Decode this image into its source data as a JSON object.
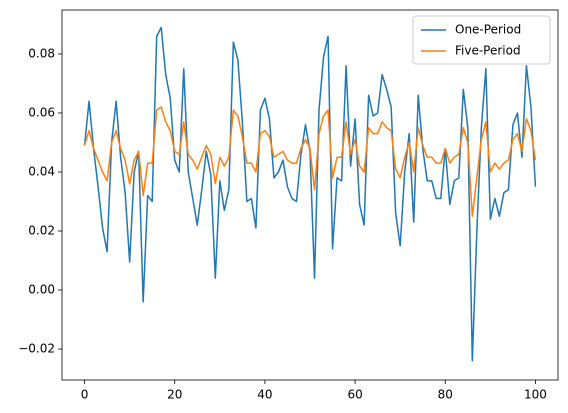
{
  "chart_data": {
    "type": "line",
    "x": [
      0,
      1,
      2,
      3,
      4,
      5,
      6,
      7,
      8,
      9,
      10,
      11,
      12,
      13,
      14,
      15,
      16,
      17,
      18,
      19,
      20,
      21,
      22,
      23,
      24,
      25,
      26,
      27,
      28,
      29,
      30,
      31,
      32,
      33,
      34,
      35,
      36,
      37,
      38,
      39,
      40,
      41,
      42,
      43,
      44,
      45,
      46,
      47,
      48,
      49,
      50,
      51,
      52,
      53,
      54,
      55,
      56,
      57,
      58,
      59,
      60,
      61,
      62,
      63,
      64,
      65,
      66,
      67,
      68,
      69,
      70,
      71,
      72,
      73,
      74,
      75,
      76,
      77,
      78,
      79,
      80,
      81,
      82,
      83,
      84,
      85,
      86,
      87,
      88,
      89,
      90,
      91,
      92,
      93,
      94,
      95,
      96,
      97,
      98,
      99,
      100
    ],
    "series": [
      {
        "name": "One-Period",
        "color": "#1f77b4",
        "values": [
          0.049,
          0.064,
          0.048,
          0.035,
          0.021,
          0.013,
          0.05,
          0.064,
          0.045,
          0.033,
          0.0095,
          0.04,
          0.047,
          -0.004,
          0.032,
          0.03,
          0.086,
          0.089,
          0.073,
          0.065,
          0.044,
          0.04,
          0.075,
          0.04,
          0.031,
          0.022,
          0.034,
          0.047,
          0.039,
          0.004,
          0.037,
          0.027,
          0.034,
          0.084,
          0.078,
          0.057,
          0.03,
          0.031,
          0.021,
          0.061,
          0.065,
          0.058,
          0.038,
          0.04,
          0.044,
          0.035,
          0.031,
          0.03,
          0.046,
          0.056,
          0.047,
          0.004,
          0.061,
          0.079,
          0.086,
          0.014,
          0.038,
          0.037,
          0.076,
          0.042,
          0.058,
          0.029,
          0.022,
          0.066,
          0.059,
          0.06,
          0.073,
          0.068,
          0.062,
          0.026,
          0.015,
          0.04,
          0.053,
          0.023,
          0.066,
          0.048,
          0.037,
          0.037,
          0.031,
          0.031,
          0.048,
          0.029,
          0.037,
          0.038,
          0.068,
          0.055,
          -0.024,
          0.02,
          0.055,
          0.075,
          0.024,
          0.031,
          0.025,
          0.033,
          0.034,
          0.056,
          0.06,
          0.045,
          0.076,
          0.062,
          0.035
        ]
      },
      {
        "name": "Five-Period",
        "color": "#ff7f0e",
        "values": [
          0.049,
          0.054,
          0.048,
          0.044,
          0.04,
          0.037,
          0.05,
          0.054,
          0.048,
          0.044,
          0.036,
          0.044,
          0.047,
          0.032,
          0.043,
          0.043,
          0.061,
          0.062,
          0.057,
          0.054,
          0.047,
          0.046,
          0.057,
          0.046,
          0.044,
          0.041,
          0.045,
          0.049,
          0.046,
          0.036,
          0.045,
          0.042,
          0.045,
          0.061,
          0.059,
          0.052,
          0.043,
          0.043,
          0.04,
          0.053,
          0.054,
          0.052,
          0.045,
          0.046,
          0.047,
          0.044,
          0.043,
          0.043,
          0.048,
          0.051,
          0.048,
          0.034,
          0.053,
          0.059,
          0.061,
          0.038,
          0.045,
          0.045,
          0.057,
          0.046,
          0.051,
          0.042,
          0.04,
          0.055,
          0.053,
          0.053,
          0.057,
          0.055,
          0.054,
          0.041,
          0.038,
          0.045,
          0.05,
          0.04,
          0.055,
          0.049,
          0.045,
          0.045,
          0.043,
          0.043,
          0.048,
          0.043,
          0.045,
          0.046,
          0.055,
          0.05,
          0.025,
          0.038,
          0.051,
          0.057,
          0.04,
          0.043,
          0.041,
          0.043,
          0.044,
          0.051,
          0.053,
          0.047,
          0.058,
          0.054,
          0.044
        ]
      }
    ],
    "xlim": [
      -5,
      105
    ],
    "xticks": [
      0,
      20,
      40,
      60,
      80,
      100
    ],
    "ylim": [
      -0.0305,
      0.0949
    ],
    "yticks": [
      {
        "value": -0.02,
        "label": "−0.02"
      },
      {
        "value": 0,
        "label": "0.00"
      },
      0.02,
      0.04,
      0.06,
      0.08
    ],
    "legend": "upper right"
  }
}
